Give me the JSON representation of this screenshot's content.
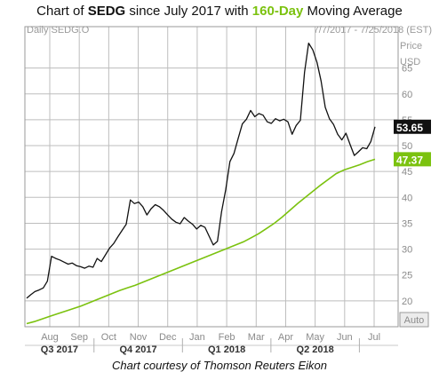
{
  "title": {
    "prefix": "Chart of ",
    "ticker": "SEDG",
    "middle": " since July 2017 with ",
    "ma_label": "160-Day",
    "suffix": " Moving Average"
  },
  "credit": "Chart courtesy of Thomson Reuters Eikon",
  "colors": {
    "price": "#111111",
    "ma": "#7bc20f",
    "grid": "#bdbdbd",
    "price_box": "#111111",
    "ma_box": "#7bc20f"
  },
  "chart_data": {
    "type": "line",
    "series_label": "Daily SEDG.O",
    "date_range": "7/7/2017 - 7/25/2018 (EST)",
    "ylabel": "Price",
    "yunit": "USD",
    "y_ticks": [
      20,
      25,
      30,
      35,
      40,
      45,
      50,
      55,
      60,
      65
    ],
    "ylim": [
      15,
      73
    ],
    "x_ticks": [
      "Aug",
      "Sep",
      "Oct",
      "Nov",
      "Dec",
      "Jan",
      "Feb",
      "Mar",
      "Apr",
      "May",
      "Jun",
      "Jul"
    ],
    "quarters": [
      "Q3 2017",
      "Q4 2017",
      "Q1 2018",
      "Q2 2018"
    ],
    "scale_mode": "Auto",
    "last_price": "53.65",
    "last_ma": "47.37",
    "grid": true,
    "series": [
      {
        "name": "SEDG",
        "values": [
          20.5,
          21.2,
          21.8,
          22.1,
          22.5,
          23.8,
          28.6,
          28.2,
          27.9,
          27.5,
          27.1,
          27.3,
          26.8,
          26.6,
          26.3,
          26.7,
          26.5,
          28.2,
          27.6,
          28.9,
          30.2,
          31.1,
          32.4,
          33.6,
          34.8,
          39.5,
          38.8,
          39.1,
          38.2,
          36.6,
          37.8,
          38.6,
          38.2,
          37.5,
          36.6,
          35.8,
          35.2,
          34.9,
          36.1,
          35.4,
          34.8,
          33.9,
          34.6,
          34.2,
          32.5,
          30.8,
          31.5,
          37.2,
          41.5,
          46.9,
          48.5,
          51.4,
          54.2,
          55.1,
          56.8,
          55.6,
          56.2,
          55.9,
          54.6,
          54.3,
          55.2,
          54.8,
          55.1,
          54.6,
          52.2,
          53.9,
          54.9,
          64.2,
          69.8,
          68.5,
          66.1,
          62.5,
          57.4,
          55.2,
          54.1,
          52.2,
          51.1,
          52.4,
          50.2,
          48.1,
          48.8,
          49.6,
          49.4,
          50.8,
          53.65
        ]
      },
      {
        "name": "160-Day",
        "values": [
          15.6,
          16.0,
          16.5,
          17.0,
          17.5,
          18.0,
          18.5,
          19.0,
          19.6,
          20.2,
          20.8,
          21.4,
          22.0,
          22.5,
          23.0,
          23.6,
          24.2,
          24.8,
          25.4,
          26.0,
          26.6,
          27.2,
          27.8,
          28.4,
          29.0,
          29.6,
          30.2,
          30.8,
          31.4,
          32.2,
          33.0,
          34.0,
          35.0,
          36.2,
          37.5,
          38.8,
          40.0,
          41.2,
          42.4,
          43.5,
          44.6,
          45.3,
          45.8,
          46.3,
          46.9,
          47.37
        ]
      }
    ]
  }
}
